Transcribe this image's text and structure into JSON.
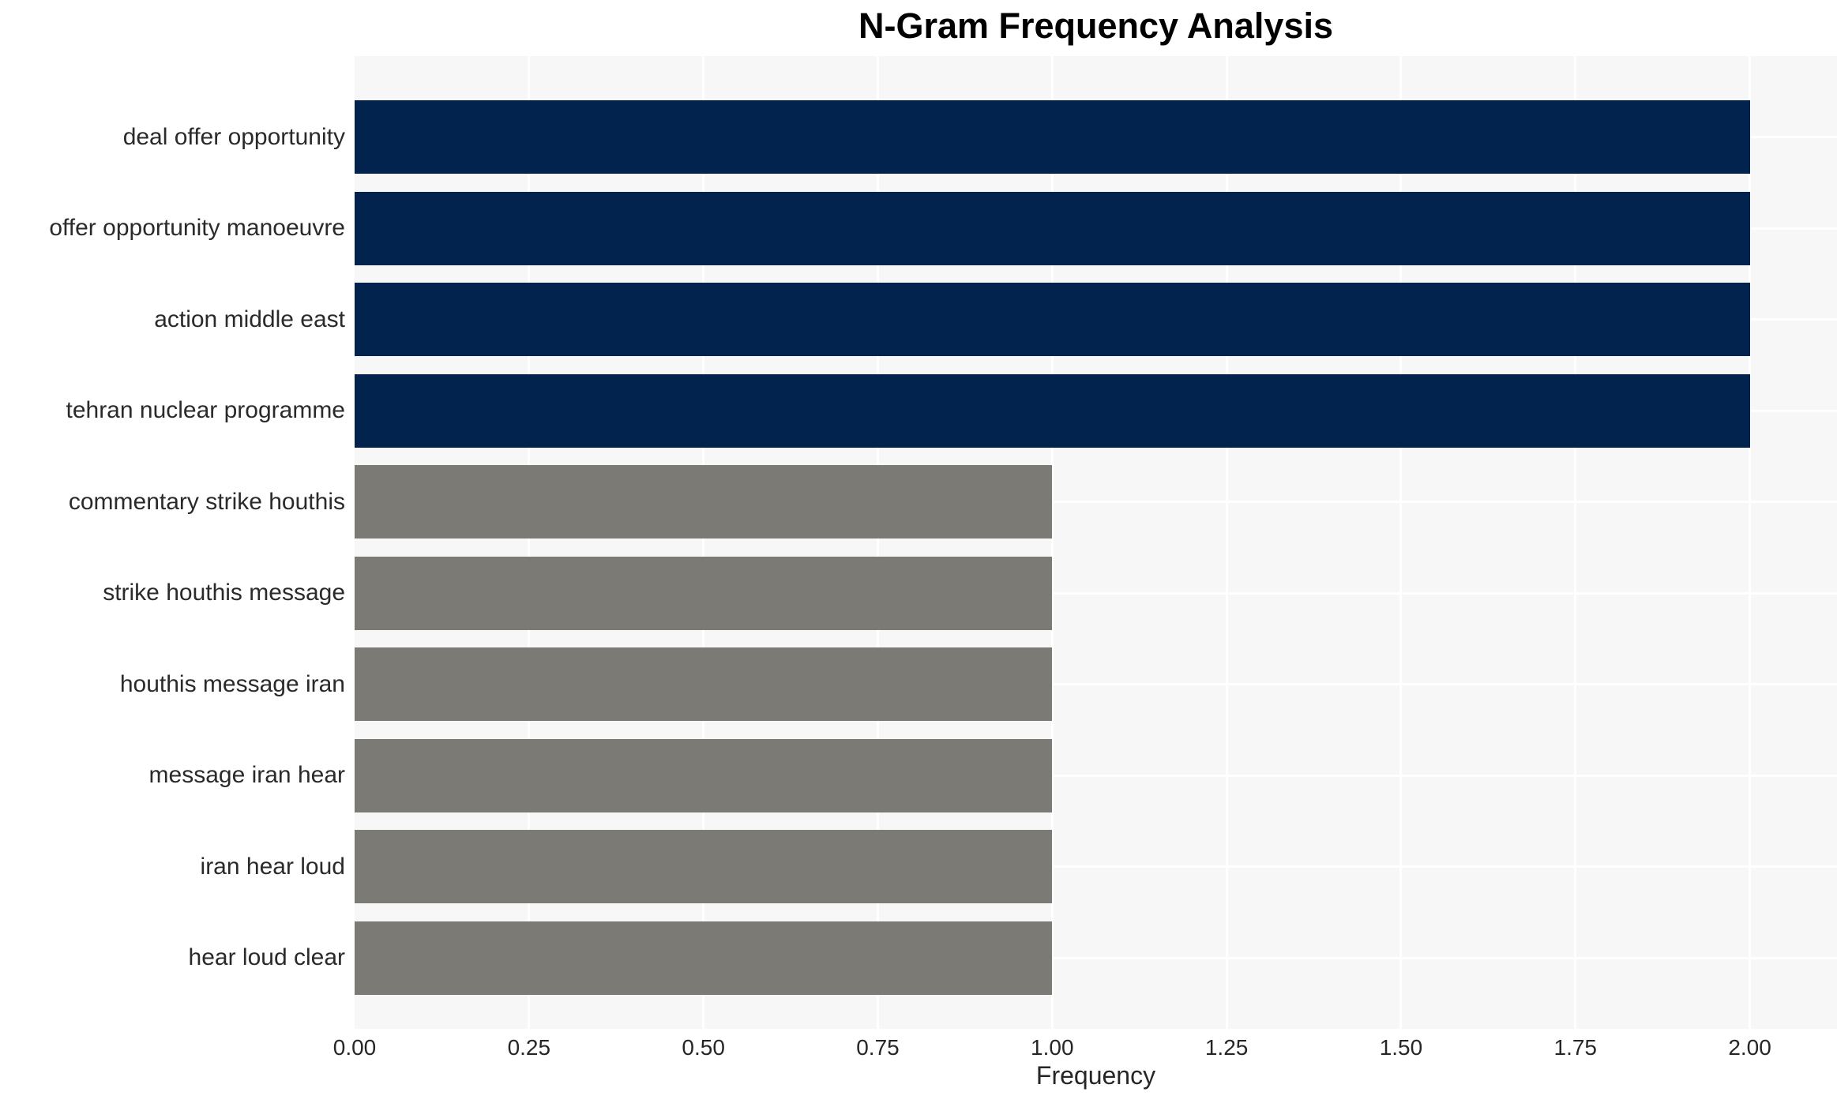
{
  "title": "N-Gram Frequency Analysis",
  "chart_data": {
    "type": "bar",
    "orientation": "horizontal",
    "title": "N-Gram Frequency Analysis",
    "categories": [
      "deal offer opportunity",
      "offer opportunity manoeuvre",
      "action middle east",
      "tehran nuclear programme",
      "commentary strike houthis",
      "strike houthis message",
      "houthis message iran",
      "message iran hear",
      "iran hear loud",
      "hear loud clear"
    ],
    "values": [
      2,
      2,
      2,
      2,
      1,
      1,
      1,
      1,
      1,
      1
    ],
    "bar_colors": [
      "#02234d",
      "#02234d",
      "#02234d",
      "#02234d",
      "#7b7a75",
      "#7b7a75",
      "#7b7a75",
      "#7b7a75",
      "#7b7a75",
      "#7b7a75"
    ],
    "xlabel": "Frequency",
    "ylabel": "",
    "xlim": [
      0,
      2.125
    ],
    "xticks": [
      0,
      0.25,
      0.5,
      0.75,
      1.0,
      1.25,
      1.5,
      1.75,
      2.0
    ],
    "xtick_labels": [
      "0.00",
      "0.25",
      "0.50",
      "0.75",
      "1.00",
      "1.25",
      "1.50",
      "1.75",
      "2.00"
    ],
    "grid": true,
    "legend": false,
    "colors": {
      "high_frequency_bar": "#02234d",
      "low_frequency_bar": "#7b7a75",
      "plot_background": "#f7f7f7",
      "gridline": "#ffffff",
      "text": "#262626"
    }
  }
}
